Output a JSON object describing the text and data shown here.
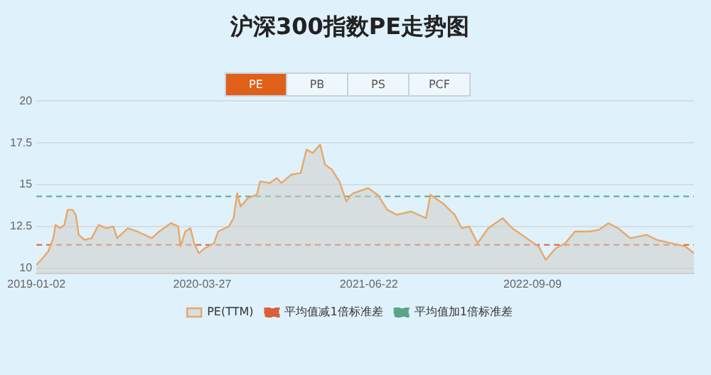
{
  "chart_data": {
    "type": "area",
    "title": "沪深300指数PE走势图",
    "x": [
      "2019-01-02",
      "2019-01-15",
      "2019-02-03",
      "2019-02-17",
      "2019-02-23",
      "2019-03-08",
      "2019-03-19",
      "2019-03-28",
      "2019-04-10",
      "2019-04-19",
      "2019-04-27",
      "2019-05-12",
      "2019-06-01",
      "2019-06-20",
      "2019-07-10",
      "2019-07-30",
      "2019-08-09",
      "2019-09-07",
      "2019-10-03",
      "2019-11-11",
      "2019-12-01",
      "2020-01-02",
      "2020-01-22",
      "2020-01-28",
      "2020-02-10",
      "2020-02-24",
      "2020-03-05",
      "2020-03-18",
      "2020-04-03",
      "2020-04-28",
      "2020-05-09",
      "2020-06-07",
      "2020-06-20",
      "2020-06-30",
      "2020-07-09",
      "2020-07-29",
      "2020-08-22",
      "2020-08-31",
      "2020-09-26",
      "2020-10-15",
      "2020-10-28",
      "2020-11-23",
      "2020-12-19",
      "2021-01-04",
      "2021-01-21",
      "2021-02-10",
      "2021-02-23",
      "2021-03-14",
      "2021-04-03",
      "2021-04-22",
      "2021-05-05",
      "2021-05-12",
      "2021-06-20",
      "2021-07-16",
      "2021-08-11",
      "2021-09-06",
      "2021-10-15",
      "2021-11-24",
      "2021-12-06",
      "2022-01-08",
      "2022-02-10",
      "2022-03-01",
      "2022-03-21",
      "2022-04-13",
      "2022-05-12",
      "2022-06-20",
      "2022-07-16",
      "2022-08-24",
      "2022-09-26",
      "2022-10-15",
      "2022-11-11",
      "2022-12-07",
      "2023-01-02",
      "2023-02-10",
      "2023-03-08",
      "2023-04-03",
      "2023-04-29",
      "2023-06-01",
      "2023-07-16",
      "2023-08-12",
      "2023-09-20",
      "2023-10-29",
      "2023-11-21"
    ],
    "series": [
      {
        "name": "PE(TTM)",
        "color": "#e8a868",
        "values": [
          10.2,
          10.5,
          11.0,
          11.8,
          12.6,
          12.4,
          12.6,
          13.5,
          13.5,
          13.2,
          12.0,
          11.7,
          11.8,
          12.6,
          12.4,
          12.5,
          11.8,
          12.4,
          12.2,
          11.8,
          12.2,
          12.7,
          12.5,
          11.3,
          12.2,
          12.4,
          11.5,
          10.9,
          11.2,
          11.5,
          12.2,
          12.5,
          13.0,
          14.5,
          13.7,
          14.2,
          14.4,
          15.2,
          15.1,
          15.4,
          15.1,
          15.6,
          15.7,
          17.1,
          16.9,
          17.4,
          16.2,
          15.9,
          15.2,
          14.0,
          14.4,
          14.5,
          14.8,
          14.4,
          13.5,
          13.2,
          13.4,
          13.0,
          14.4,
          13.9,
          13.2,
          12.4,
          12.5,
          11.5,
          12.4,
          13.0,
          12.4,
          11.8,
          11.3,
          10.5,
          11.2,
          11.5,
          12.2,
          12.2,
          12.3,
          12.7,
          12.4,
          11.8,
          12.0,
          11.7,
          11.5,
          11.3,
          10.9
        ]
      }
    ],
    "ref_lines": [
      {
        "axis": "y",
        "value": 11.4,
        "label": "平均值减1倍标准差",
        "color": "#d9603b",
        "line_style": "dashed"
      },
      {
        "axis": "y",
        "value": 14.3,
        "label": "平均值加1倍标准差",
        "color": "#5aa58a",
        "line_style": "dashed"
      }
    ],
    "xlim": [
      "2019-01-02",
      "2023-11-21"
    ],
    "xticks": [
      {
        "value": "2019-01-02",
        "label": "2019-01-02"
      },
      {
        "value": "2020-03-27",
        "label": "2020-03-27"
      },
      {
        "value": "2021-06-22",
        "label": "2021-06-22"
      },
      {
        "value": "2022-09-09",
        "label": "2022-09-09"
      }
    ],
    "ylim": [
      9.7,
      20
    ],
    "yticks": [
      10,
      12.5,
      15,
      17.5,
      20
    ],
    "grid": "y",
    "legend": "bottom",
    "marker": "none",
    "annotations": [
      "PE",
      "PB",
      "PS",
      "PCF"
    ]
  }
}
